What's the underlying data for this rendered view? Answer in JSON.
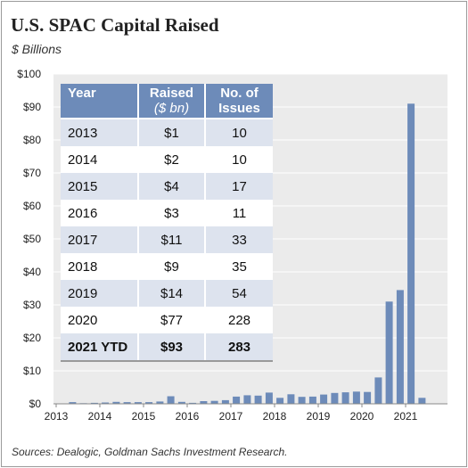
{
  "title": "U.S. SPAC Capital Raised",
  "subtitle": "$ Billions",
  "source": "Sources: Dealogic, Goldman Sachs Investment Research.",
  "colors": {
    "bar": "#6d8bb9",
    "plot_bg": "#ebebeb",
    "table_header": "#6d8bb9",
    "table_stripe": "#dde3ee"
  },
  "table": {
    "headers": {
      "year": "Year",
      "raised_line1": "Raised",
      "raised_line2": "($ bn)",
      "issues_line1": "No. of",
      "issues_line2": "Issues"
    },
    "rows": [
      {
        "year": "2013",
        "raised": "$1",
        "issues": "10"
      },
      {
        "year": "2014",
        "raised": "$2",
        "issues": "10"
      },
      {
        "year": "2015",
        "raised": "$4",
        "issues": "17"
      },
      {
        "year": "2016",
        "raised": "$3",
        "issues": "11"
      },
      {
        "year": "2017",
        "raised": "$11",
        "issues": "33"
      },
      {
        "year": "2018",
        "raised": "$9",
        "issues": "35"
      },
      {
        "year": "2019",
        "raised": "$14",
        "issues": "54"
      },
      {
        "year": "2020",
        "raised": "$77",
        "issues": "228"
      },
      {
        "year": "2021 YTD",
        "raised": "$93",
        "issues": "283"
      }
    ]
  },
  "chart_data": {
    "type": "bar",
    "title": "U.S. SPAC Capital Raised",
    "subtitle": "$ Billions",
    "xlabel": "",
    "ylabel": "",
    "ylim": [
      0,
      100
    ],
    "yticks": [
      0,
      10,
      20,
      30,
      40,
      50,
      60,
      70,
      80,
      90,
      100
    ],
    "ytick_labels": [
      "$0",
      "$10",
      "$20",
      "$30",
      "$40",
      "$50",
      "$60",
      "$70",
      "$80",
      "$90",
      "$100"
    ],
    "xticks": [
      "2013",
      "2014",
      "2015",
      "2016",
      "2017",
      "2018",
      "2019",
      "2020",
      "2021"
    ],
    "grid": true,
    "bar_interval": "quarterly",
    "categories": [
      "2013Q1",
      "2013Q2",
      "2013Q3",
      "2013Q4",
      "2014Q1",
      "2014Q2",
      "2014Q3",
      "2014Q4",
      "2015Q1",
      "2015Q2",
      "2015Q3",
      "2015Q4",
      "2016Q1",
      "2016Q2",
      "2016Q3",
      "2016Q4",
      "2017Q1",
      "2017Q2",
      "2017Q3",
      "2017Q4",
      "2018Q1",
      "2018Q2",
      "2018Q3",
      "2018Q4",
      "2019Q1",
      "2019Q2",
      "2019Q3",
      "2019Q4",
      "2020Q1",
      "2020Q2",
      "2020Q3",
      "2020Q4",
      "2021Q1",
      "2021Q2"
    ],
    "values": [
      0.1,
      0.5,
      0.2,
      0.3,
      0.4,
      0.6,
      0.5,
      0.5,
      0.5,
      0.7,
      2.3,
      0.6,
      0.3,
      0.8,
      0.9,
      1.1,
      2.2,
      2.6,
      2.5,
      3.4,
      1.8,
      2.9,
      2.1,
      2.2,
      2.8,
      3.3,
      3.5,
      3.7,
      3.6,
      8.0,
      31.0,
      34.5,
      91.0,
      1.8
    ]
  }
}
